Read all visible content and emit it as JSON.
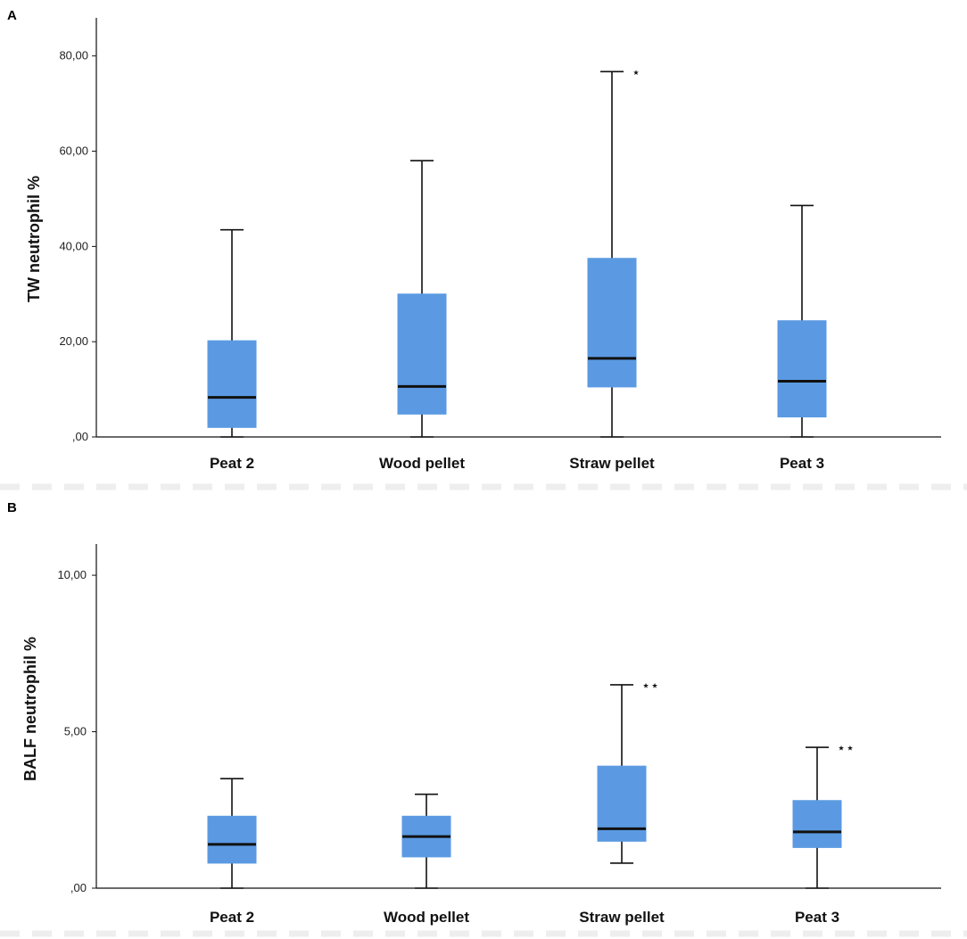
{
  "colors": {
    "box_fill": "#5b9ae2",
    "line": "#111111",
    "separator": "#eeeeee"
  },
  "chart_data": [
    {
      "type": "boxplot",
      "panel": "A",
      "ylabel": "TW neutrophil %",
      "xlabel": "",
      "ylim": [
        0,
        88
      ],
      "yticks": [
        0,
        20,
        40,
        60,
        80
      ],
      "ytick_labels": [
        ",00",
        "20,00",
        "40,00",
        "60,00",
        "80,00"
      ],
      "categories": [
        "Peat 2",
        "Wood pellet",
        "Straw pellet",
        "Peat 3"
      ],
      "series": [
        {
          "name": "Peat 2",
          "min": 0,
          "q1": 2,
          "median": 8.3,
          "q3": 20.2,
          "max": 43.5,
          "outlier_marker": ""
        },
        {
          "name": "Wood pellet",
          "min": 0,
          "q1": 4.8,
          "median": 10.6,
          "q3": 30,
          "max": 58,
          "outlier_marker": ""
        },
        {
          "name": "Straw pellet",
          "min": 0,
          "q1": 10.5,
          "median": 16.5,
          "q3": 37.5,
          "max": 76.7,
          "outlier_marker": "⋆"
        },
        {
          "name": "Peat 3",
          "min": 0,
          "q1": 4.2,
          "median": 11.7,
          "q3": 24.4,
          "max": 48.6,
          "outlier_marker": ""
        }
      ]
    },
    {
      "type": "boxplot",
      "panel": "B",
      "ylabel": "BALF neutrophil %",
      "xlabel": "",
      "ylim": [
        0,
        11
      ],
      "yticks": [
        0,
        5,
        10
      ],
      "ytick_labels": [
        ",00",
        "5,00",
        "10,00"
      ],
      "categories": [
        "Peat 2",
        "Wood pellet",
        "Straw pellet",
        "Peat 3"
      ],
      "series": [
        {
          "name": "Peat 2",
          "min": 0,
          "q1": 0.8,
          "median": 1.4,
          "q3": 2.3,
          "max": 3.5,
          "outlier_marker": ""
        },
        {
          "name": "Wood pellet",
          "min": 0,
          "q1": 1.0,
          "median": 1.65,
          "q3": 2.3,
          "max": 3.0,
          "outlier_marker": ""
        },
        {
          "name": "Straw pellet",
          "min": 0.8,
          "q1": 1.5,
          "median": 1.9,
          "q3": 3.9,
          "max": 6.5,
          "outlier_marker": "⋆⋆"
        },
        {
          "name": "Peat 3",
          "min": 0,
          "q1": 1.3,
          "median": 1.8,
          "q3": 2.8,
          "max": 4.5,
          "outlier_marker": "⋆⋆"
        }
      ]
    }
  ]
}
